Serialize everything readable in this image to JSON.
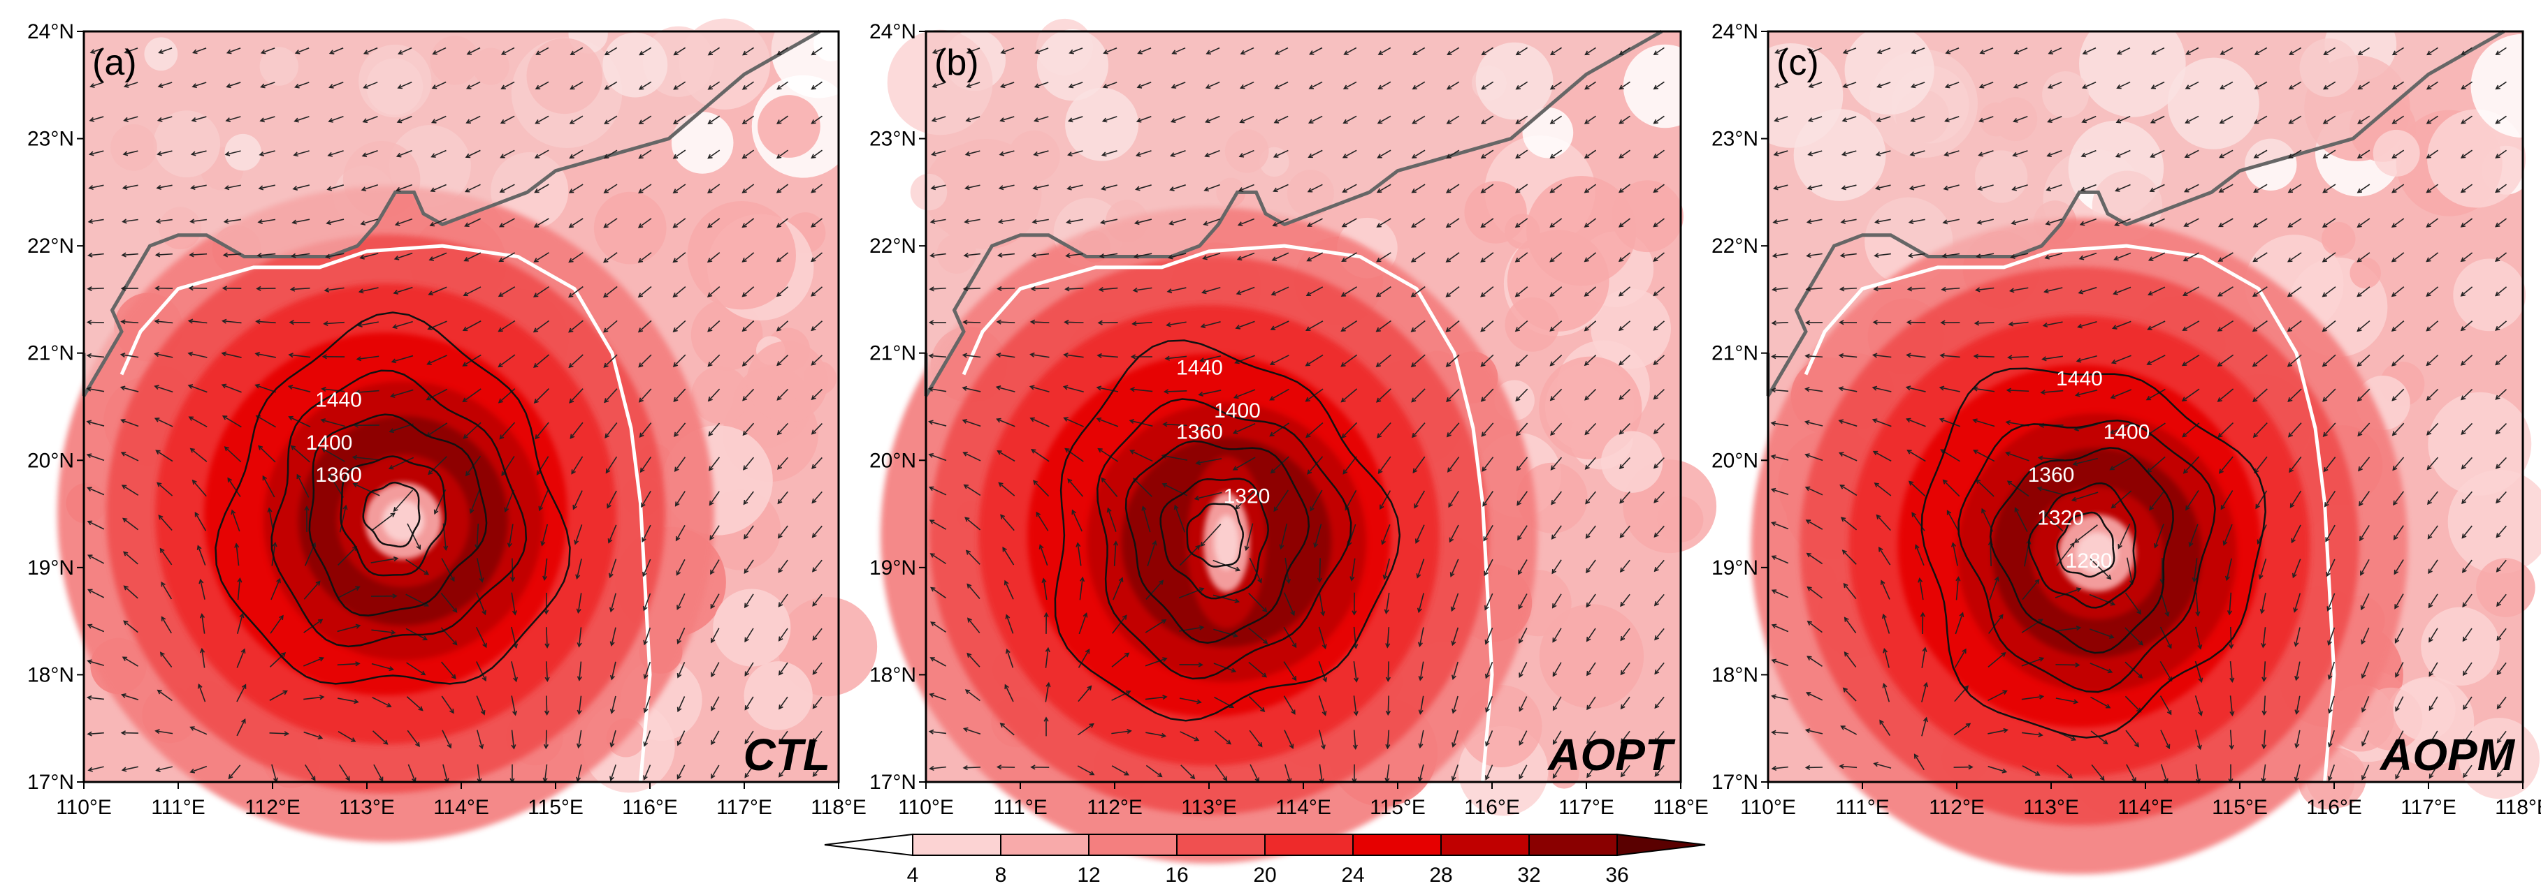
{
  "figure": {
    "panels": [
      {
        "id": "a",
        "label": "(a)",
        "experiment": "CTL",
        "center_lon": 113.2,
        "center_lat": 19.5,
        "contour_labels": [
          "1440",
          "1400",
          "1360"
        ],
        "contour_label_positions_lonlat": [
          [
            112.7,
            20.5
          ],
          [
            112.6,
            20.1
          ],
          [
            112.7,
            19.8
          ]
        ]
      },
      {
        "id": "b",
        "label": "(b)",
        "experiment": "AOPT",
        "center_lon": 113.0,
        "center_lat": 19.3,
        "contour_labels": [
          "1440",
          "1400",
          "1360",
          "1320"
        ],
        "contour_label_positions_lonlat": [
          [
            112.9,
            20.8
          ],
          [
            113.3,
            20.4
          ],
          [
            112.9,
            20.2
          ],
          [
            113.4,
            19.6
          ]
        ]
      },
      {
        "id": "c",
        "label": "(c)",
        "experiment": "AOPM",
        "center_lon": 113.3,
        "center_lat": 19.2,
        "contour_labels": [
          "1440",
          "1400",
          "1360",
          "1320",
          "1280"
        ],
        "contour_label_positions_lonlat": [
          [
            113.3,
            20.7
          ],
          [
            113.8,
            20.2
          ],
          [
            113.0,
            19.8
          ],
          [
            113.1,
            19.4
          ],
          [
            113.4,
            19.0
          ]
        ]
      }
    ],
    "axes": {
      "lon_ticks": [
        "110°E",
        "111°E",
        "112°E",
        "113°E",
        "114°E",
        "115°E",
        "116°E",
        "117°E",
        "118°E"
      ],
      "lat_ticks": [
        "17°N",
        "18°N",
        "19°N",
        "20°N",
        "21°N",
        "22°N",
        "23°N",
        "24°N"
      ],
      "lon_range": [
        110,
        118
      ],
      "lat_range": [
        17,
        24
      ]
    },
    "colorbar": {
      "ticks": [
        "4",
        "8",
        "12",
        "16",
        "20",
        "24",
        "28",
        "32",
        "36"
      ],
      "colors": [
        "#ffffff",
        "#fcd3d3",
        "#f8aaaa",
        "#f47f7f",
        "#f05050",
        "#ee2a2a",
        "#e60000",
        "#c00000",
        "#8a0000",
        "#5a0000"
      ]
    },
    "colors": {
      "coastline": "#666666",
      "land_sea_line": "#ffffff",
      "contour": "#111111",
      "vector": "#222222"
    }
  }
}
